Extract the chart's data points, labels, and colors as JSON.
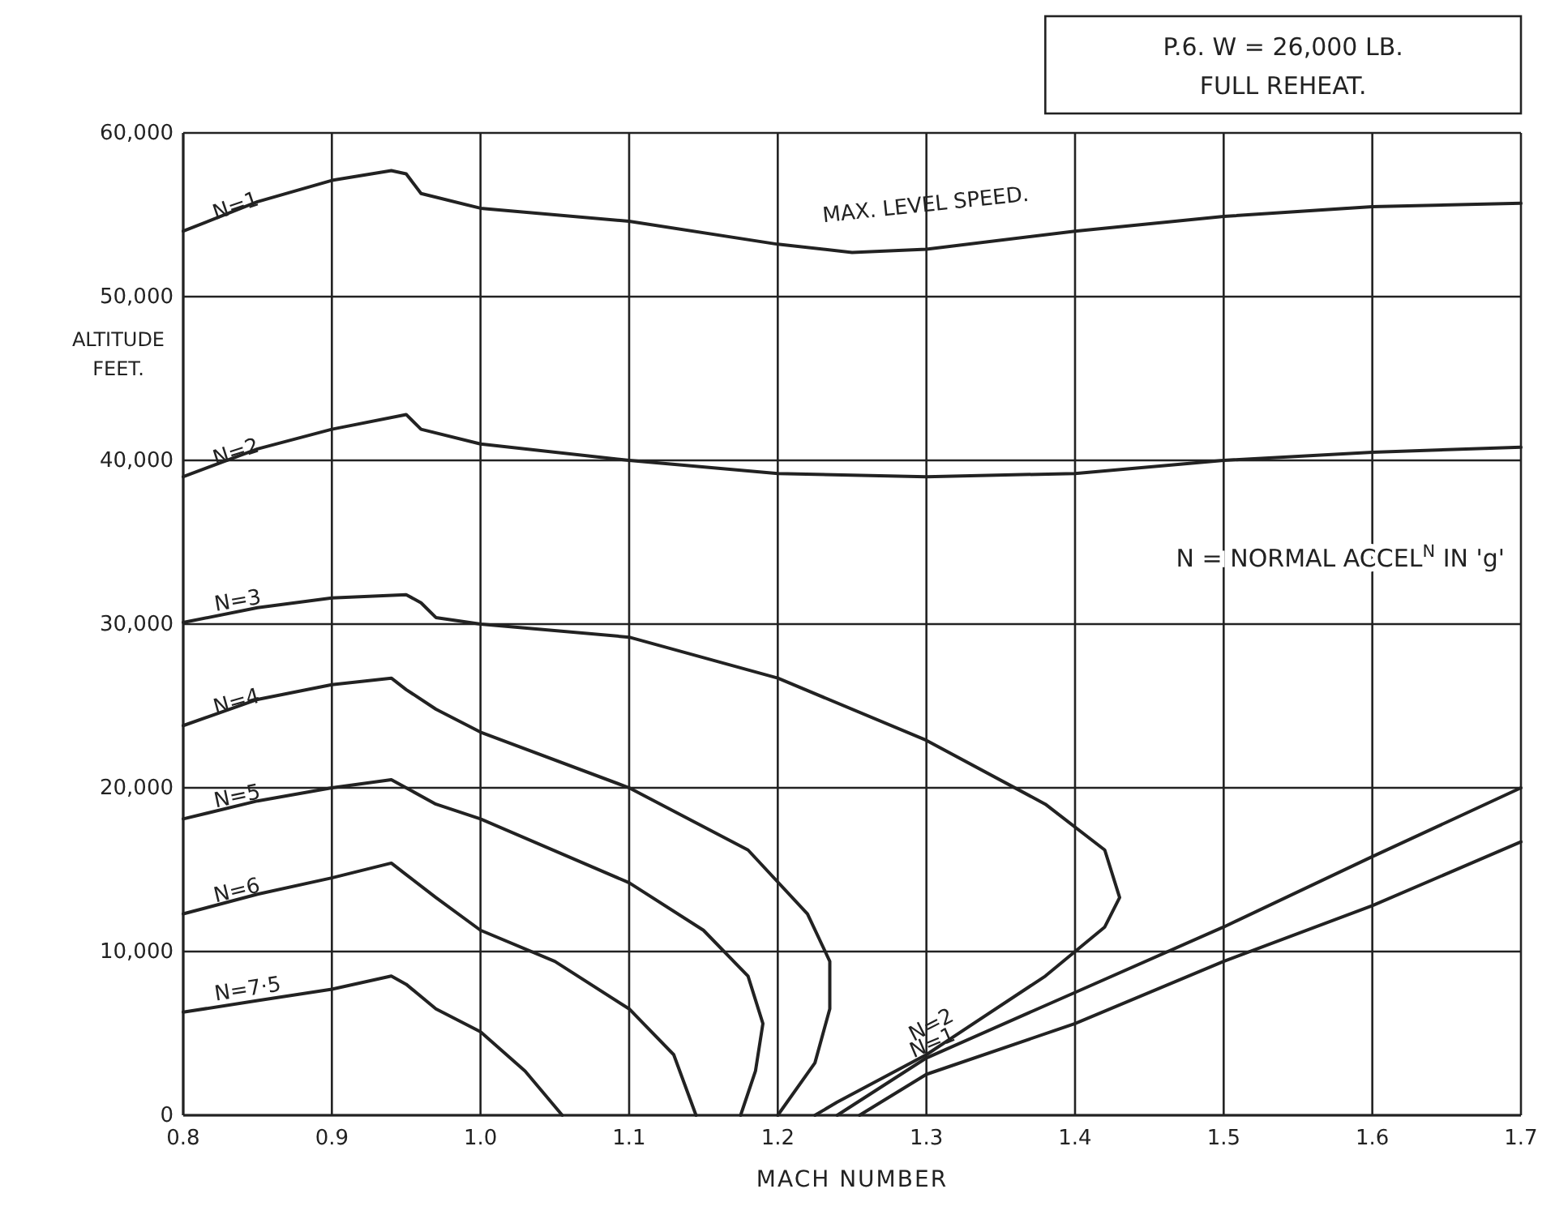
{
  "chart_data": {
    "type": "line",
    "title": "P.6.   W = 26,000 LB.",
    "subtitle": "FULL REHEAT.",
    "xlabel": "MACH NUMBER",
    "ylabel": "ALTITUDE FEET.",
    "xlim": [
      0.8,
      1.7
    ],
    "ylim": [
      0,
      60000
    ],
    "xticks": [
      {
        "value": 0.8,
        "label": "0.8"
      },
      {
        "value": 0.9,
        "label": "0.9"
      },
      {
        "value": 1.0,
        "label": "1.0"
      },
      {
        "value": 1.1,
        "label": "1.1"
      },
      {
        "value": 1.2,
        "label": "1.2"
      },
      {
        "value": 1.3,
        "label": "1.3"
      },
      {
        "value": 1.4,
        "label": "1.4"
      },
      {
        "value": 1.5,
        "label": "1.5"
      },
      {
        "value": 1.6,
        "label": "1.6"
      },
      {
        "value": 1.7,
        "label": "1.7"
      }
    ],
    "yticks": [
      {
        "value": 0,
        "label": "0"
      },
      {
        "value": 10000,
        "label": "10,000"
      },
      {
        "value": 20000,
        "label": "20,000"
      },
      {
        "value": 30000,
        "label": "30,000"
      },
      {
        "value": 40000,
        "label": "40,000"
      },
      {
        "value": 50000,
        "label": "50,000"
      },
      {
        "value": 60000,
        "label": "60,000"
      }
    ],
    "grid": true,
    "marker": "none",
    "line_style": "solid",
    "annotations": [
      "MAX. LEVEL SPEED.",
      "N = NORMAL ACCEL$^{N}$ IN 'g'"
    ],
    "series": [
      {
        "name": "N=1",
        "color": "#222222",
        "x": [
          0.8,
          0.85,
          0.9,
          0.94,
          0.95,
          0.96,
          1.0,
          1.1,
          1.2,
          1.25,
          1.3,
          1.4,
          1.5,
          1.6,
          1.7,
          null,
          1.255,
          1.3,
          1.4,
          1.5,
          1.6,
          1.7
        ],
        "values": [
          54000,
          55800,
          57100,
          57700,
          57500,
          56300,
          55400,
          54600,
          53200,
          52700,
          52900,
          54000,
          54900,
          55500,
          55700,
          null,
          0,
          2500,
          5600,
          9400,
          12800,
          16700
        ]
      },
      {
        "name": "N=2",
        "color": "#222222",
        "x": [
          0.8,
          0.85,
          0.9,
          0.95,
          0.96,
          1.0,
          1.1,
          1.2,
          1.3,
          1.4,
          1.5,
          1.6,
          1.7,
          null,
          1.24,
          1.3,
          1.4,
          1.5,
          1.6,
          1.7
        ],
        "values": [
          39000,
          40700,
          41900,
          42800,
          41900,
          41000,
          40000,
          39200,
          39000,
          39200,
          40000,
          40500,
          40800,
          null,
          0,
          3500,
          7500,
          11500,
          15800,
          20000
        ]
      },
      {
        "name": "N=3",
        "color": "#222222",
        "x": [
          0.8,
          0.85,
          0.9,
          0.95,
          0.96,
          0.97,
          1.0,
          1.1,
          1.2,
          1.3,
          1.38,
          1.42,
          1.43,
          1.42,
          1.38,
          1.3,
          1.24,
          1.225
        ],
        "values": [
          30100,
          31000,
          31600,
          31800,
          31300,
          30400,
          30000,
          29200,
          26700,
          22900,
          19000,
          16200,
          13300,
          11500,
          8500,
          3700,
          800,
          0
        ]
      },
      {
        "name": "N=4",
        "color": "#222222",
        "x": [
          0.8,
          0.85,
          0.9,
          0.94,
          0.95,
          0.97,
          1.0,
          1.1,
          1.18,
          1.22,
          1.235,
          1.235,
          1.225,
          1.2
        ],
        "values": [
          23800,
          25400,
          26300,
          26700,
          26000,
          24800,
          23400,
          20000,
          16200,
          12300,
          9400,
          6500,
          3200,
          0
        ]
      },
      {
        "name": "N=5",
        "color": "#222222",
        "x": [
          0.8,
          0.85,
          0.9,
          0.94,
          0.95,
          0.97,
          1.0,
          1.1,
          1.15,
          1.18,
          1.19,
          1.185,
          1.175
        ],
        "values": [
          18100,
          19200,
          20000,
          20500,
          20000,
          19000,
          18100,
          14200,
          11300,
          8500,
          5600,
          2700,
          0
        ]
      },
      {
        "name": "N=6",
        "color": "#222222",
        "x": [
          0.8,
          0.85,
          0.9,
          0.94,
          0.95,
          0.97,
          1.0,
          1.05,
          1.1,
          1.13,
          1.145
        ],
        "values": [
          12300,
          13500,
          14500,
          15400,
          14700,
          13300,
          11300,
          9400,
          6500,
          3700,
          0
        ]
      },
      {
        "name": "N=7·5",
        "color": "#222222",
        "x": [
          0.8,
          0.85,
          0.9,
          0.94,
          0.95,
          0.97,
          1.0,
          1.03,
          1.055
        ],
        "values": [
          6300,
          7000,
          7700,
          8500,
          8000,
          6500,
          5100,
          2700,
          0
        ]
      }
    ]
  }
}
